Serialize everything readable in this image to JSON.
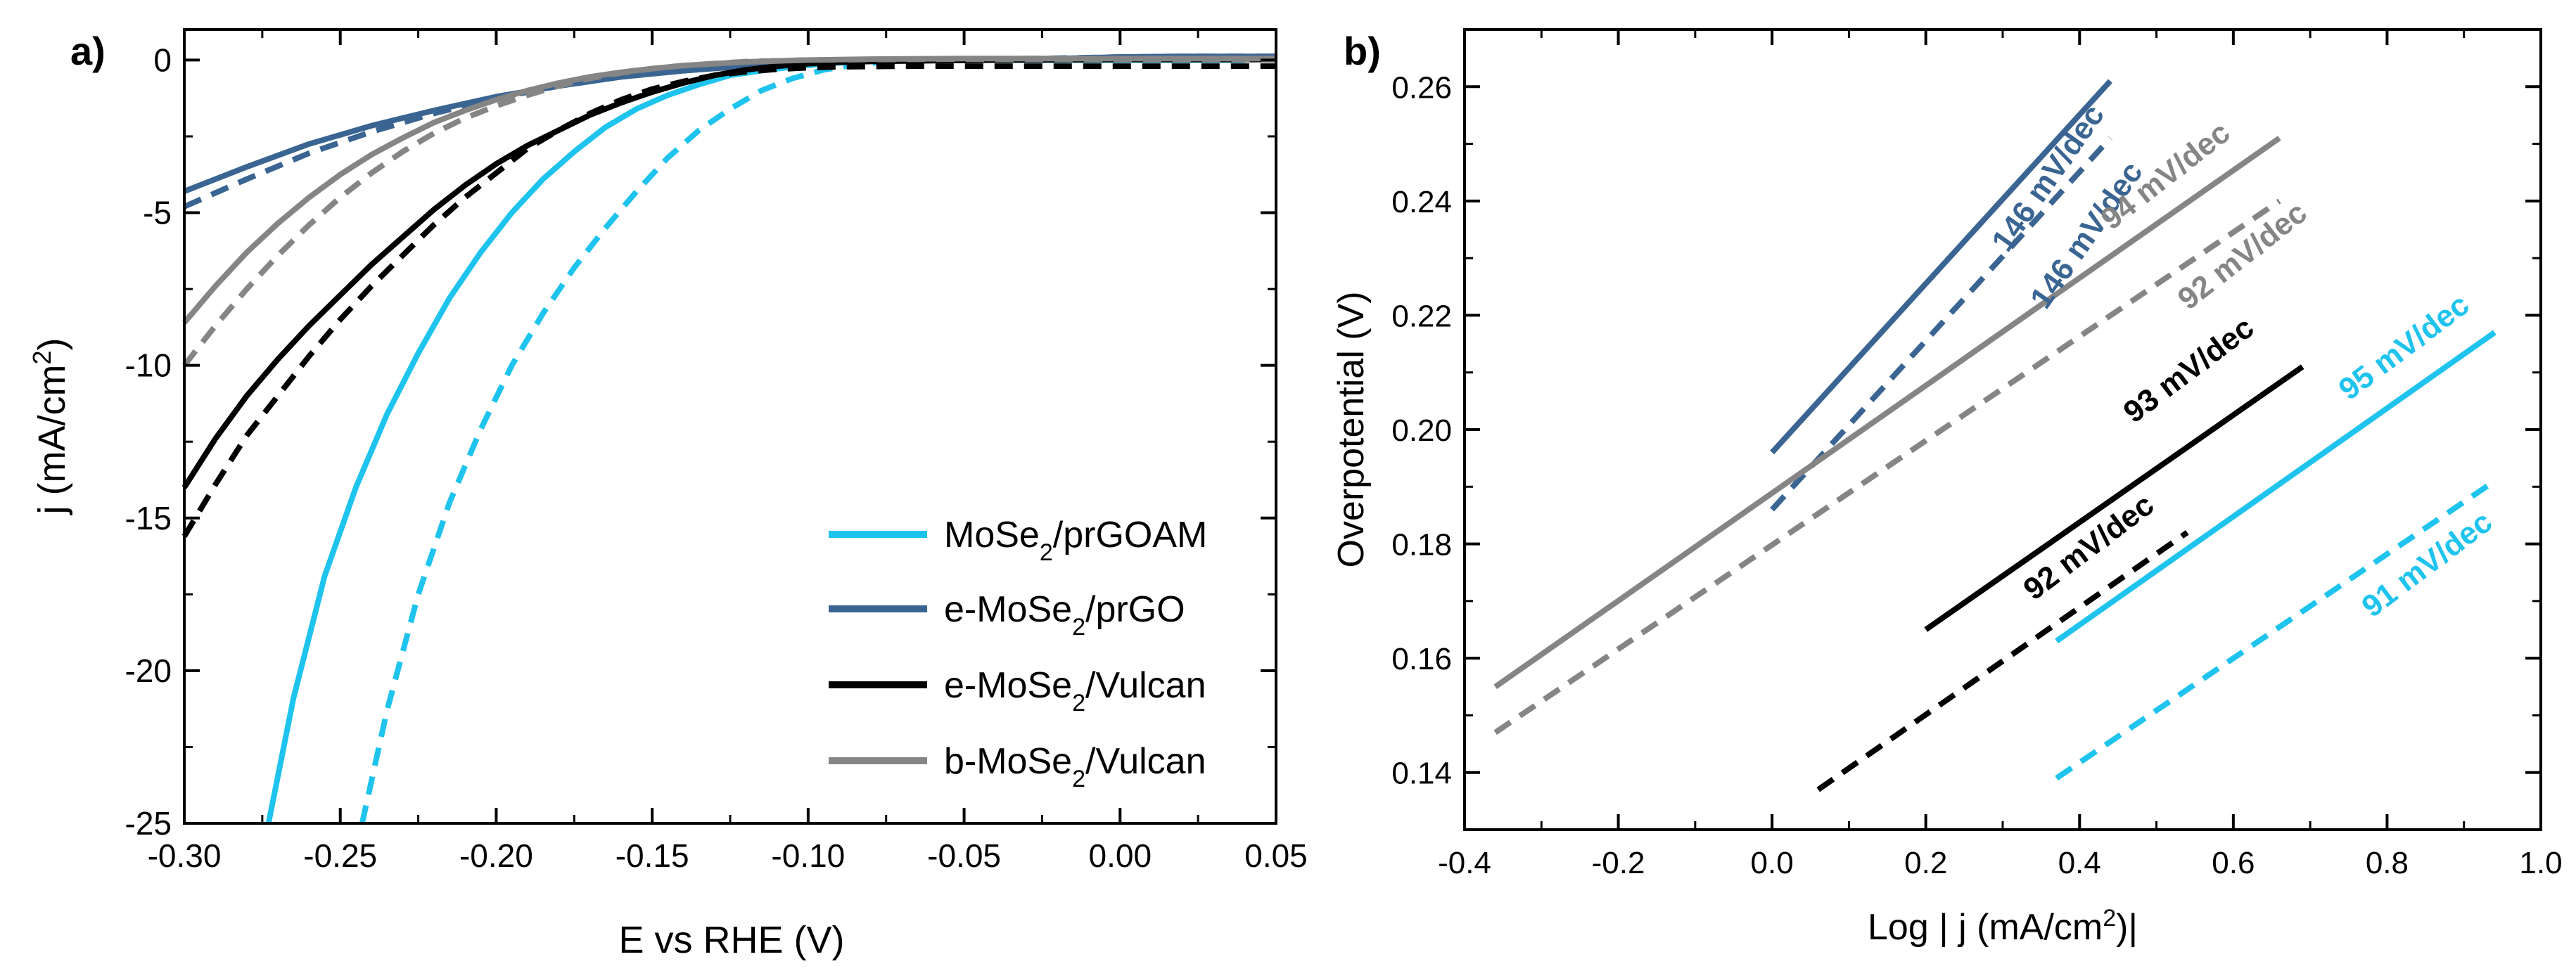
{
  "figure": {
    "colors": {
      "cyan": "#1ec3ee",
      "blue": "#3a6592",
      "black": "#000000",
      "gray": "#858585"
    }
  },
  "chart_data": [
    {
      "panel_label": "a)",
      "type": "line",
      "xlabel": "E vs RHE (V)",
      "ylabel": {
        "main": "j (mA/cm",
        "sup": "2",
        "tail": ")"
      },
      "xlim": [
        -0.3,
        0.05
      ],
      "ylim": [
        -25,
        1
      ],
      "xticks": [
        -0.3,
        -0.25,
        -0.2,
        -0.15,
        -0.1,
        -0.05,
        0.0,
        0.05
      ],
      "xtick_labels": [
        "-0.30",
        "-0.25",
        "-0.20",
        "-0.15",
        "-0.10",
        "-0.05",
        "0.00",
        "0.05"
      ],
      "yticks": [
        0,
        -5,
        -10,
        -15,
        -20,
        -25
      ],
      "ytick_labels": [
        "0",
        "-5",
        "-10",
        "-15",
        "-20",
        "-25"
      ],
      "legend": {
        "placement": "bottom-right",
        "entries": [
          {
            "pre": "MoSe",
            "sub": "2",
            "post": "/prGOAM",
            "color": "#1ec3ee"
          },
          {
            "pre": "e-MoSe",
            "sub": "2",
            "post": "/prGO",
            "color": "#3a6592"
          },
          {
            "pre": "e-MoSe",
            "sub": "2",
            "post": "/Vulcan",
            "color": "#000000"
          },
          {
            "pre": "b-MoSe",
            "sub": "2",
            "post": "/Vulcan",
            "color": "#858585"
          }
        ]
      },
      "series": [
        {
          "name": "MoSe2/prGOAM",
          "style": "solid",
          "color": "#1ec3ee",
          "x": [
            -0.273,
            -0.265,
            -0.255,
            -0.245,
            -0.235,
            -0.225,
            -0.215,
            -0.205,
            -0.195,
            -0.185,
            -0.175,
            -0.165,
            -0.155,
            -0.145,
            -0.135,
            -0.125,
            -0.115,
            -0.105,
            -0.095,
            -0.085,
            -0.075,
            -0.065,
            -0.05,
            -0.03,
            0.0,
            0.03,
            0.04
          ],
          "y": [
            -25.0,
            -20.9,
            -16.9,
            -14.0,
            -11.6,
            -9.6,
            -7.8,
            -6.3,
            -5.0,
            -3.9,
            -3.0,
            -2.2,
            -1.6,
            -1.15,
            -0.8,
            -0.5,
            -0.35,
            -0.22,
            -0.12,
            -0.06,
            -0.02,
            0.0,
            0.0,
            0.0,
            0.0,
            0.0,
            0.0
          ]
        },
        {
          "name": "MoSe2/prGOAM (dashed)",
          "style": "dashed",
          "color": "#1ec3ee",
          "x": [
            -0.243,
            -0.235,
            -0.225,
            -0.215,
            -0.205,
            -0.195,
            -0.185,
            -0.175,
            -0.165,
            -0.155,
            -0.145,
            -0.135,
            -0.125,
            -0.115,
            -0.105,
            -0.095,
            -0.085,
            -0.075,
            -0.065,
            -0.05,
            -0.03,
            0.0,
            0.04
          ],
          "y": [
            -25.0,
            -21.3,
            -17.5,
            -14.5,
            -12.1,
            -10.0,
            -8.3,
            -6.8,
            -5.5,
            -4.3,
            -3.2,
            -2.3,
            -1.6,
            -1.0,
            -0.6,
            -0.32,
            -0.15,
            -0.05,
            0.0,
            0.0,
            0.0,
            0.0,
            0.0
          ]
        },
        {
          "name": "e-MoSe2/prGO",
          "style": "solid",
          "color": "#3a6592",
          "x": [
            -0.3,
            -0.28,
            -0.26,
            -0.24,
            -0.22,
            -0.2,
            -0.18,
            -0.16,
            -0.14,
            -0.12,
            -0.1,
            -0.08,
            -0.05,
            -0.02,
            0.0,
            0.02,
            0.05
          ],
          "y": [
            -4.3,
            -3.5,
            -2.75,
            -2.15,
            -1.65,
            -1.2,
            -0.85,
            -0.55,
            -0.35,
            -0.2,
            -0.1,
            -0.04,
            0.0,
            0.05,
            0.1,
            0.12,
            0.12
          ]
        },
        {
          "name": "e-MoSe2/prGO (dashed)",
          "style": "dashed",
          "color": "#3a6592",
          "x": [
            -0.3,
            -0.28,
            -0.26,
            -0.24,
            -0.22,
            -0.2,
            -0.18,
            -0.16,
            -0.14,
            -0.12,
            -0.1,
            -0.08,
            -0.05,
            -0.02,
            0.0,
            0.02,
            0.05
          ],
          "y": [
            -4.8,
            -3.9,
            -3.05,
            -2.35,
            -1.75,
            -1.25,
            -0.85,
            -0.55,
            -0.32,
            -0.17,
            -0.08,
            -0.02,
            0.02,
            0.06,
            0.1,
            0.12,
            0.12
          ]
        },
        {
          "name": "e-MoSe2/Vulcan",
          "style": "solid",
          "color": "#000000",
          "x": [
            -0.3,
            -0.29,
            -0.28,
            -0.27,
            -0.26,
            -0.25,
            -0.24,
            -0.23,
            -0.22,
            -0.21,
            -0.2,
            -0.19,
            -0.18,
            -0.17,
            -0.16,
            -0.15,
            -0.14,
            -0.13,
            -0.12,
            -0.11,
            -0.1,
            -0.09,
            -0.08,
            -0.06,
            -0.04,
            0.0,
            0.05
          ],
          "y": [
            -14.0,
            -12.4,
            -11.0,
            -9.8,
            -8.7,
            -7.7,
            -6.7,
            -5.8,
            -4.9,
            -4.1,
            -3.4,
            -2.8,
            -2.3,
            -1.8,
            -1.4,
            -1.05,
            -0.75,
            -0.5,
            -0.32,
            -0.2,
            -0.12,
            -0.07,
            -0.04,
            -0.02,
            0.0,
            0.02,
            0.02
          ]
        },
        {
          "name": "e-MoSe2/Vulcan (dashed)",
          "style": "dashed",
          "color": "#000000",
          "x": [
            -0.3,
            -0.29,
            -0.28,
            -0.27,
            -0.26,
            -0.25,
            -0.24,
            -0.23,
            -0.22,
            -0.21,
            -0.2,
            -0.19,
            -0.18,
            -0.17,
            -0.16,
            -0.15,
            -0.14,
            -0.13,
            -0.12,
            -0.11,
            -0.1,
            -0.09,
            -0.07,
            -0.05,
            -0.03,
            0.0,
            0.05
          ],
          "y": [
            -15.6,
            -13.9,
            -12.3,
            -11.0,
            -9.7,
            -8.5,
            -7.4,
            -6.4,
            -5.4,
            -4.5,
            -3.7,
            -2.9,
            -2.3,
            -1.75,
            -1.3,
            -0.95,
            -0.7,
            -0.5,
            -0.38,
            -0.3,
            -0.25,
            -0.22,
            -0.2,
            -0.2,
            -0.2,
            -0.2,
            -0.2
          ]
        },
        {
          "name": "b-MoSe2/Vulcan",
          "style": "solid",
          "color": "#858585",
          "x": [
            -0.3,
            -0.29,
            -0.28,
            -0.27,
            -0.26,
            -0.25,
            -0.24,
            -0.23,
            -0.22,
            -0.21,
            -0.2,
            -0.19,
            -0.18,
            -0.17,
            -0.16,
            -0.15,
            -0.14,
            -0.12,
            -0.1,
            -0.08,
            -0.05,
            0.0,
            0.05
          ],
          "y": [
            -8.6,
            -7.4,
            -6.3,
            -5.35,
            -4.5,
            -3.75,
            -3.1,
            -2.55,
            -2.05,
            -1.65,
            -1.3,
            -1.0,
            -0.75,
            -0.55,
            -0.4,
            -0.28,
            -0.18,
            -0.06,
            0.0,
            0.03,
            0.05,
            0.05,
            0.05
          ]
        },
        {
          "name": "b-MoSe2/Vulcan (dashed)",
          "style": "dashed",
          "color": "#858585",
          "x": [
            -0.3,
            -0.29,
            -0.28,
            -0.27,
            -0.26,
            -0.25,
            -0.24,
            -0.23,
            -0.22,
            -0.21,
            -0.2,
            -0.19,
            -0.18,
            -0.17,
            -0.16,
            -0.15,
            -0.14,
            -0.12,
            -0.1,
            -0.08,
            -0.05,
            0.0,
            0.05
          ],
          "y": [
            -10.0,
            -8.7,
            -7.5,
            -6.4,
            -5.4,
            -4.5,
            -3.7,
            -3.0,
            -2.4,
            -1.9,
            -1.5,
            -1.15,
            -0.85,
            -0.6,
            -0.42,
            -0.28,
            -0.18,
            -0.05,
            0.0,
            0.02,
            0.03,
            0.03,
            0.03
          ]
        }
      ]
    },
    {
      "panel_label": "b)",
      "type": "line",
      "xlabel": {
        "main": "Log | j (mA/cm",
        "sup": "2",
        "tail": ")|"
      },
      "ylabel": "Overpotential (V)",
      "xlim": [
        -0.4,
        1.0
      ],
      "ylim": [
        0.13,
        0.27
      ],
      "xticks": [
        -0.4,
        -0.2,
        0.0,
        0.2,
        0.4,
        0.6,
        0.8,
        1.0
      ],
      "xtick_labels": [
        "-0.4",
        "-0.2",
        "0.0",
        "0.2",
        "0.4",
        "0.6",
        "0.8",
        "1.0"
      ],
      "yticks": [
        0.14,
        0.16,
        0.18,
        0.2,
        0.22,
        0.24,
        0.26
      ],
      "ytick_labels": [
        "0.14",
        "0.16",
        "0.18",
        "0.20",
        "0.22",
        "0.24",
        "0.26"
      ],
      "series": [
        {
          "name": "e-MoSe2/prGO",
          "style": "solid",
          "color": "#3a6592",
          "x": [
            0.0,
            0.44
          ],
          "y": [
            0.196,
            0.261
          ]
        },
        {
          "name": "e-MoSe2/prGO (dashed)",
          "style": "dashed",
          "color": "#3a6592",
          "x": [
            0.0,
            0.44
          ],
          "y": [
            0.186,
            0.251
          ]
        },
        {
          "name": "b-MoSe2/Vulcan",
          "style": "solid",
          "color": "#858585",
          "x": [
            -0.36,
            0.66
          ],
          "y": [
            0.155,
            0.251
          ]
        },
        {
          "name": "b-MoSe2/Vulcan (dashed)",
          "style": "dashed",
          "color": "#858585",
          "x": [
            -0.36,
            0.66
          ],
          "y": [
            0.147,
            0.24
          ]
        },
        {
          "name": "e-MoSe2/Vulcan",
          "style": "solid",
          "color": "#000000",
          "x": [
            0.2,
            0.69
          ],
          "y": [
            0.165,
            0.211
          ]
        },
        {
          "name": "e-MoSe2/Vulcan (dashed)",
          "style": "dashed",
          "color": "#000000",
          "x": [
            0.06,
            0.54
          ],
          "y": [
            0.137,
            0.182
          ]
        },
        {
          "name": "MoSe2/prGOAM",
          "style": "solid",
          "color": "#1ec3ee",
          "x": [
            0.37,
            0.94
          ],
          "y": [
            0.163,
            0.217
          ]
        },
        {
          "name": "MoSe2/prGOAM (dashed)",
          "style": "dashed",
          "color": "#1ec3ee",
          "x": [
            0.37,
            0.94
          ],
          "y": [
            0.139,
            0.191
          ]
        }
      ],
      "annotations": [
        {
          "text": "146 mV/dec",
          "color": "#3a6592",
          "x": 0.37,
          "y": 0.243,
          "angle": -55
        },
        {
          "text": "146 mV/dec",
          "color": "#3a6592",
          "x": 0.42,
          "y": 0.233,
          "angle": -55
        },
        {
          "text": "94 mV/dec",
          "color": "#858585",
          "x": 0.52,
          "y": 0.243,
          "angle": -38
        },
        {
          "text": "92 mV/dec",
          "color": "#858585",
          "x": 0.62,
          "y": 0.229,
          "angle": -38
        },
        {
          "text": "93 mV/dec",
          "color": "#000000",
          "x": 0.55,
          "y": 0.209,
          "angle": -37
        },
        {
          "text": "92 mV/dec",
          "color": "#000000",
          "x": 0.42,
          "y": 0.178,
          "angle": -37
        },
        {
          "text": "95 mV/dec",
          "color": "#1ec3ee",
          "x": 0.83,
          "y": 0.213,
          "angle": -37
        },
        {
          "text": "91 mV/dec",
          "color": "#1ec3ee",
          "x": 0.86,
          "y": 0.175,
          "angle": -37
        }
      ]
    }
  ]
}
